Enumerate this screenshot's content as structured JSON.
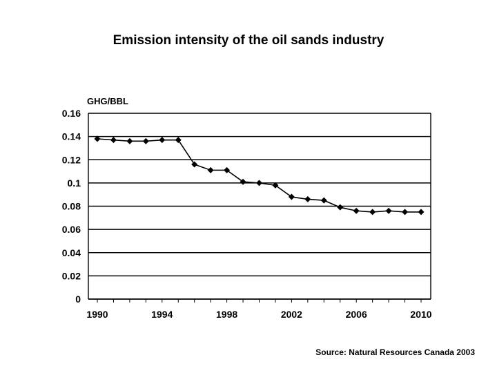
{
  "page": {
    "title": "Emission intensity of the oil sands industry",
    "source": "Source: Natural Resources Canada 2003"
  },
  "chart_data": {
    "type": "line",
    "title": "Emission intensity of the oil sands industry",
    "xlabel": "",
    "ylabel": "GHG/BBL",
    "xlim": [
      1990,
      2010
    ],
    "ylim": [
      0,
      0.16
    ],
    "x_ticks": [
      "1990",
      "1994",
      "1998",
      "2002",
      "2006",
      "2010"
    ],
    "y_ticks": [
      "0",
      "0.02",
      "0.04",
      "0.06",
      "0.08",
      "0.1",
      "0.12",
      "0.14",
      "0.16"
    ],
    "grid": "horizontal",
    "legend": "none",
    "colors": {
      "line": "#000000",
      "marker": "#000000",
      "grid": "#000000"
    },
    "series": [
      {
        "x": [
          1990,
          1991,
          1992,
          1993,
          1994,
          1995,
          1996,
          1997,
          1998,
          1999,
          2000,
          2001,
          2002,
          2003,
          2004,
          2005,
          2006,
          2007,
          2008,
          2009,
          2010
        ],
        "values": [
          0.138,
          0.137,
          0.136,
          0.136,
          0.137,
          0.137,
          0.116,
          0.111,
          0.111,
          0.101,
          0.1,
          0.098,
          0.088,
          0.086,
          0.085,
          0.079,
          0.076,
          0.075,
          0.076,
          0.075,
          0.075
        ]
      }
    ]
  }
}
